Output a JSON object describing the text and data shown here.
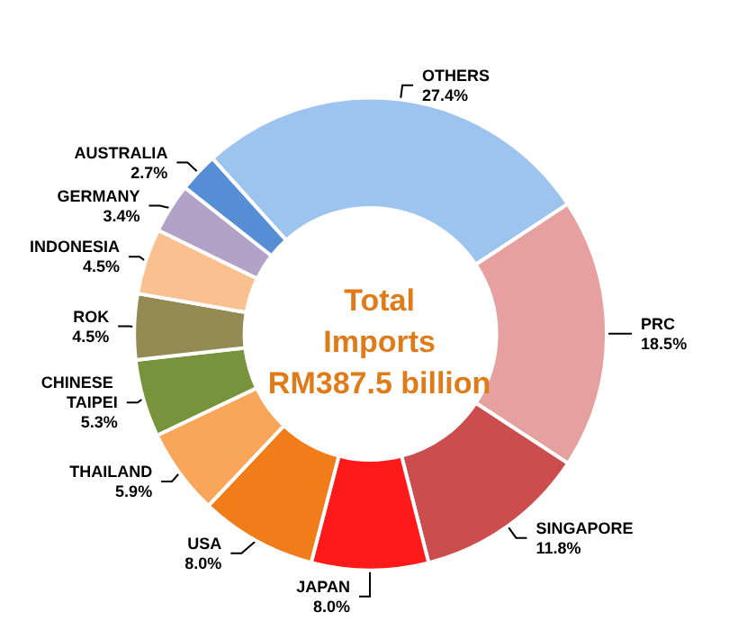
{
  "chart_data": {
    "type": "donut",
    "title": "Total\nImports\nRM387.5 billion",
    "categories": [
      "OTHERS",
      "PRC",
      "SINGAPORE",
      "JAPAN",
      "USA",
      "THAILAND",
      "CHINESE TAIPEI",
      "ROK",
      "INDONESIA",
      "GERMANY",
      "AUSTRALIA"
    ],
    "values": [
      27.4,
      18.5,
      11.8,
      8.0,
      8.0,
      5.9,
      5.3,
      4.5,
      4.5,
      3.4,
      2.7
    ],
    "value_labels": [
      "27.4%",
      "18.5%",
      "11.8%",
      "8.0%",
      "8.0%",
      "5.9%",
      "5.3%",
      "4.5%",
      "4.5%",
      "3.4%",
      "2.7%"
    ],
    "colors": [
      "#9dc3ef",
      "#e6a0a0",
      "#cc4d4d",
      "#ff1a1a",
      "#f07d1a",
      "#f9a55a",
      "#77933c",
      "#948a54",
      "#fac090",
      "#b3a2c7",
      "#558ed5"
    ],
    "legend": false
  }
}
